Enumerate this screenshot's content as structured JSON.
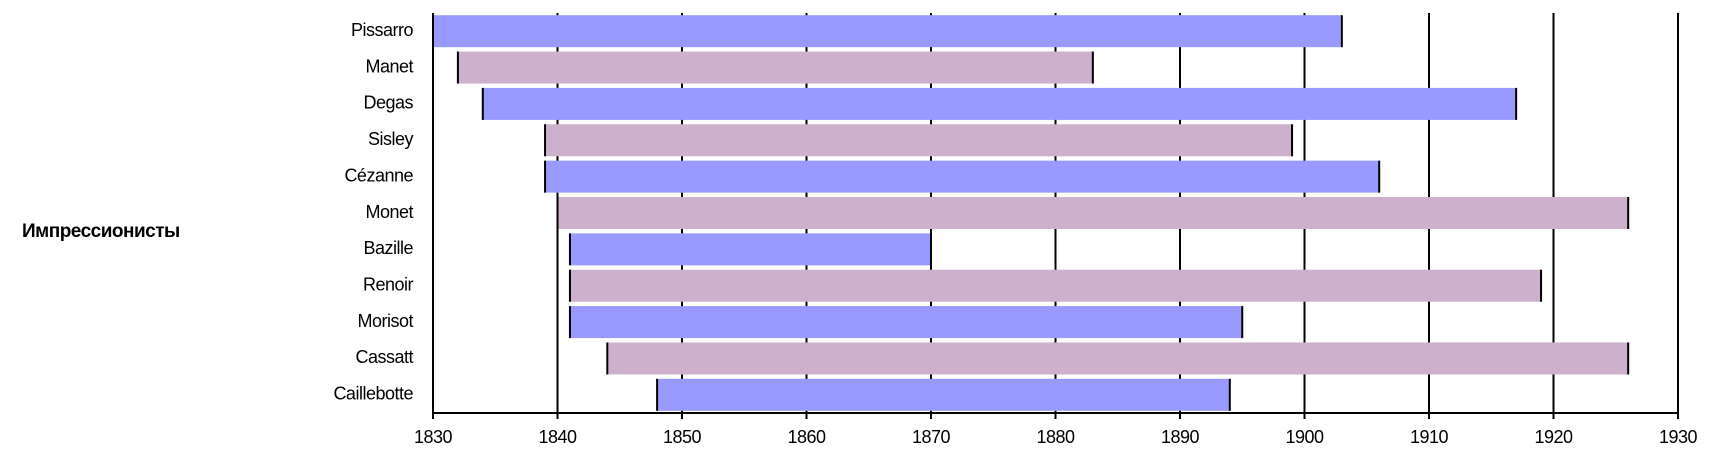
{
  "chart_data": {
    "type": "timeline",
    "group_label": "Импрессионисты",
    "categories": [
      "Pissarro",
      "Manet",
      "Degas",
      "Sisley",
      "Cézanne",
      "Monet",
      "Bazille",
      "Renoir",
      "Morisot",
      "Cassatt",
      "Caillebotte"
    ],
    "starts": [
      1830,
      1832,
      1834,
      1839,
      1839,
      1840,
      1841,
      1841,
      1841,
      1844,
      1848
    ],
    "ends": [
      1903,
      1883,
      1917,
      1899,
      1906,
      1926,
      1870,
      1919,
      1895,
      1926,
      1894
    ],
    "colors": [
      "#9999ff",
      "#ccb0cc",
      "#9999ff",
      "#ccb0cc",
      "#9999ff",
      "#ccb0cc",
      "#9999ff",
      "#ccb0cc",
      "#9999ff",
      "#ccb0cc",
      "#9999ff"
    ],
    "xlim": [
      1830,
      1930
    ],
    "xticks": [
      1830,
      1840,
      1850,
      1860,
      1870,
      1880,
      1890,
      1900,
      1910,
      1920,
      1930
    ],
    "grid": true
  }
}
